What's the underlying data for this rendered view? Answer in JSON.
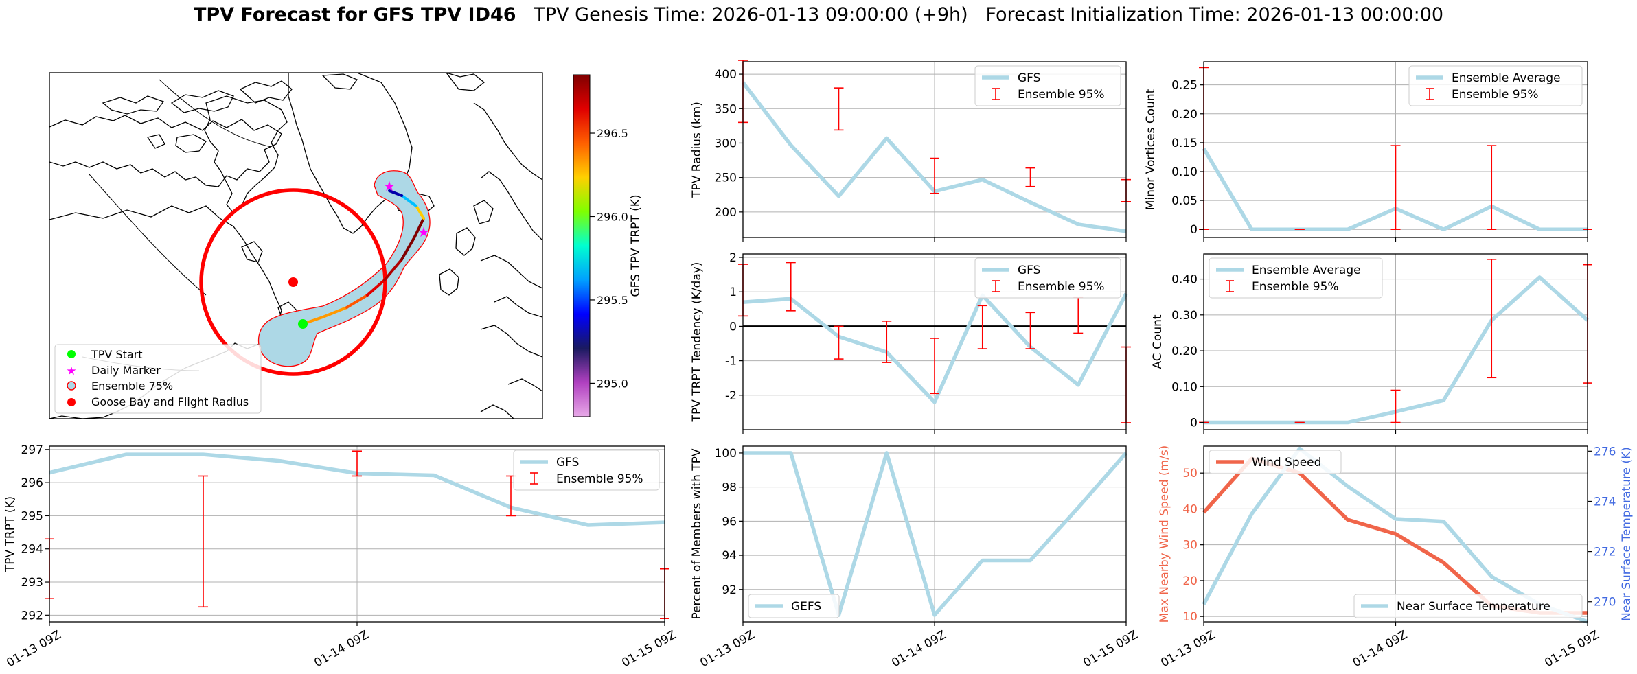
{
  "figure": {
    "title_bold": "TPV Forecast for GFS TPV ID46",
    "title_genesis": "TPV Genesis Time: 2026-01-13 09:00:00 (+9h)",
    "title_init": "Forecast Initialization Time: 2026-01-13 00:00:00"
  },
  "colors": {
    "gfs_line": "#add8e6",
    "ensemble_err": "#ff0000",
    "wind": "#f0654a",
    "temp_axis": "#4169e1",
    "goose_bay": "#ff0000",
    "tpv_start": "#00ff00",
    "daily_marker": "#ff00ff"
  },
  "map": {
    "legend": [
      "TPV Start",
      "Daily Marker",
      "Ensemble 75%",
      "Goose Bay and Flight Radius"
    ],
    "colorbar": {
      "label": "GFS TPV TRPT (K)",
      "ticks": [
        295.0,
        295.5,
        296.0,
        296.5
      ],
      "min": 294.8,
      "max": 296.85,
      "colormap": [
        "#e8a9e8",
        "#b040c0",
        "#1a1a60",
        "#0000ff",
        "#00a0ff",
        "#00ffd0",
        "#7fff00",
        "#ffd000",
        "#ff6000",
        "#e00000",
        "#800000"
      ]
    },
    "track_colors": [
      "#ff9900",
      "#ff5500",
      "#e00000",
      "#b00000",
      "#800000",
      "#ffcc00",
      "#00bfff",
      "#0000aa"
    ]
  },
  "chart_data": [
    {
      "id": "radius",
      "type": "line",
      "ylabel": "TPV Radius (km)",
      "x": [
        "01-13 09Z",
        "01-13 15Z",
        "01-13 21Z",
        "01-14 03Z",
        "01-14 09Z",
        "01-14 15Z",
        "01-14 21Z",
        "01-15 03Z",
        "01-15 09Z"
      ],
      "series": [
        {
          "name": "GFS",
          "values": [
            388,
            297,
            223,
            307,
            230,
            247,
            214,
            182,
            172
          ]
        }
      ],
      "errorbars": {
        "name": "Ensemble 95%",
        "x": [
          0,
          2,
          4,
          6,
          8
        ],
        "low": [
          330,
          319,
          227,
          237,
          215
        ],
        "high": [
          420,
          380,
          278,
          264,
          247
        ]
      },
      "ylim": [
        163,
        418
      ],
      "yticks": [
        200,
        250,
        300,
        350,
        400
      ],
      "legend": "upper right",
      "grid": true
    },
    {
      "id": "minor",
      "type": "line",
      "ylabel": "Minor Vortices Count",
      "x": [
        "01-13 09Z",
        "01-13 15Z",
        "01-13 21Z",
        "01-14 03Z",
        "01-14 09Z",
        "01-14 15Z",
        "01-14 21Z",
        "01-15 03Z",
        "01-15 09Z"
      ],
      "series": [
        {
          "name": "Ensemble Average",
          "values": [
            0.14,
            0,
            0,
            0,
            0.036,
            0,
            0.04,
            0,
            0
          ]
        }
      ],
      "errorbars": {
        "name": "Ensemble 95%",
        "x": [
          0,
          2,
          4,
          6,
          8
        ],
        "low": [
          0,
          0,
          0,
          0,
          0
        ],
        "high": [
          0.28,
          0,
          0.145,
          0.145,
          0
        ]
      },
      "ylim": [
        -0.014,
        0.29
      ],
      "yticks": [
        0.0,
        0.05,
        0.1,
        0.15,
        0.2,
        0.25
      ],
      "legend": "upper right",
      "grid": true
    },
    {
      "id": "tendency",
      "type": "line",
      "ylabel": "TPV TRPT Tendency (K/day)",
      "x": [
        "01-13 09Z",
        "01-13 15Z",
        "01-13 21Z",
        "01-14 03Z",
        "01-14 09Z",
        "01-14 15Z",
        "01-14 21Z",
        "01-15 03Z",
        "01-15 09Z"
      ],
      "series": [
        {
          "name": "GFS",
          "values": [
            0.7,
            0.8,
            -0.3,
            -0.75,
            -2.2,
            0.9,
            -0.6,
            -1.7,
            0.95
          ]
        }
      ],
      "errorbars": {
        "name": "Ensemble 95%",
        "x": [
          0,
          1,
          2,
          3,
          4,
          5,
          6,
          7,
          8
        ],
        "low": [
          0.3,
          0.45,
          -0.95,
          -1.05,
          -1.95,
          -0.65,
          -0.65,
          -0.2,
          -2.8
        ],
        "high": [
          1.8,
          1.85,
          0.0,
          0.15,
          -0.35,
          0.6,
          0.4,
          0.85,
          -0.6
        ]
      },
      "ylim": [
        -3.0,
        2.1
      ],
      "yticks": [
        -2,
        -1,
        0,
        1,
        2
      ],
      "hline": 0,
      "legend": "upper right",
      "grid": true
    },
    {
      "id": "ac",
      "type": "line",
      "ylabel": "AC Count",
      "x": [
        "01-13 09Z",
        "01-13 15Z",
        "01-13 21Z",
        "01-14 03Z",
        "01-14 09Z",
        "01-14 15Z",
        "01-14 21Z",
        "01-15 03Z",
        "01-15 09Z"
      ],
      "series": [
        {
          "name": "Ensemble Average",
          "values": [
            0,
            0,
            0,
            0,
            0.03,
            0.062,
            0.285,
            0.405,
            0.285
          ]
        }
      ],
      "errorbars": {
        "name": "Ensemble 95%",
        "x": [
          0,
          2,
          4,
          6,
          8
        ],
        "low": [
          0,
          0,
          0,
          0.125,
          0.11
        ],
        "high": [
          0,
          0,
          0.09,
          0.455,
          0.44
        ]
      },
      "ylim": [
        -0.02,
        0.47
      ],
      "yticks": [
        0.0,
        0.1,
        0.2,
        0.3,
        0.4
      ],
      "legend": "upper left",
      "grid": true
    },
    {
      "id": "trpt",
      "type": "line",
      "ylabel": "TPV TRPT (K)",
      "x": [
        "01-13 09Z",
        "01-13 15Z",
        "01-13 21Z",
        "01-14 03Z",
        "01-14 09Z",
        "01-14 15Z",
        "01-14 21Z",
        "01-15 03Z",
        "01-15 09Z"
      ],
      "series": [
        {
          "name": "GFS",
          "values": [
            296.3,
            296.85,
            296.85,
            296.65,
            296.28,
            296.22,
            295.25,
            294.72,
            294.8
          ]
        }
      ],
      "errorbars": {
        "name": "Ensemble 95%",
        "x": [
          0,
          2,
          4,
          6,
          8
        ],
        "low": [
          292.5,
          292.25,
          296.2,
          295.0,
          291.9
        ],
        "high": [
          294.3,
          296.2,
          296.95,
          296.2,
          293.4
        ]
      },
      "ylim": [
        291.8,
        297.1
      ],
      "yticks": [
        292,
        293,
        294,
        295,
        296,
        297
      ],
      "xticks": [
        "01-13 09Z",
        "01-14 09Z",
        "01-15 09Z"
      ],
      "legend": "upper right",
      "grid": true
    },
    {
      "id": "percent",
      "type": "line",
      "ylabel": "Percent of Members with TPV",
      "x": [
        "01-13 09Z",
        "01-13 15Z",
        "01-13 21Z",
        "01-14 03Z",
        "01-14 09Z",
        "01-14 15Z",
        "01-14 21Z",
        "01-15 03Z",
        "01-15 09Z"
      ],
      "series": [
        {
          "name": "GEFS",
          "values": [
            100,
            100,
            90.5,
            100,
            90.5,
            93.7,
            93.7,
            96.8,
            100
          ]
        }
      ],
      "ylim": [
        90.1,
        100.4
      ],
      "yticks": [
        92,
        94,
        96,
        98,
        100
      ],
      "xticks": [
        "01-13 09Z",
        "01-14 09Z",
        "01-15 09Z"
      ],
      "legend": "lower left",
      "grid": true
    },
    {
      "id": "wind_temp",
      "type": "line",
      "ylabel": "Max Nearby Wind Speed (m/s)",
      "y2label": "Near Surface Temperature (K)",
      "x": [
        "01-13 09Z",
        "01-13 15Z",
        "01-13 21Z",
        "01-14 03Z",
        "01-14 09Z",
        "01-14 15Z",
        "01-14 21Z",
        "01-15 03Z",
        "01-15 09Z"
      ],
      "series": [
        {
          "name": "Wind Speed",
          "values": [
            39,
            54,
            50,
            37,
            33,
            25,
            13,
            11,
            11
          ],
          "axis": "left"
        },
        {
          "name": "Near Surface Temperature",
          "values": [
            269.9,
            273.5,
            276.1,
            274.6,
            273.3,
            273.2,
            271.0,
            269.9,
            269.2
          ],
          "axis": "right"
        }
      ],
      "ylim": [
        8.5,
        57.5
      ],
      "yticks": [
        10,
        20,
        30,
        40,
        50
      ],
      "y2lim": [
        269.2,
        276.2
      ],
      "y2ticks": [
        270,
        272,
        274,
        276
      ],
      "xticks": [
        "01-13 09Z",
        "01-14 09Z",
        "01-15 09Z"
      ],
      "grid": true
    }
  ]
}
